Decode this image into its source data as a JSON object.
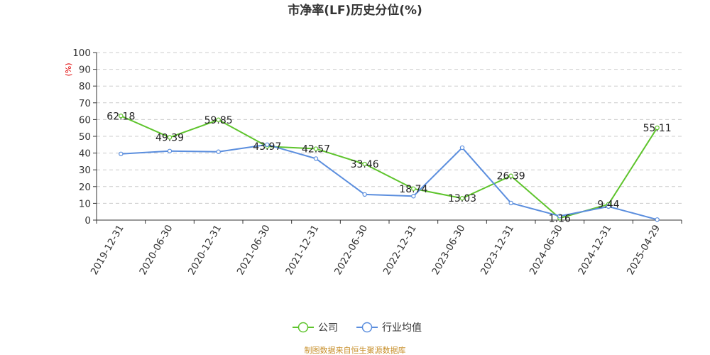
{
  "chart_data": {
    "type": "line",
    "title": "市净率(LF)历史分位(%)",
    "ylabel": "(%)",
    "ylim": [
      0,
      100
    ],
    "yticks": [
      0,
      10,
      20,
      30,
      40,
      50,
      60,
      70,
      80,
      90,
      100
    ],
    "grid": true,
    "legend_position": "bottom-center",
    "categories": [
      "2019-12-31",
      "2020-06-30",
      "2020-12-31",
      "2021-06-30",
      "2021-12-31",
      "2022-06-30",
      "2022-12-31",
      "2023-06-30",
      "2023-12-31",
      "2024-06-30",
      "2024-12-31",
      "2025-04-29"
    ],
    "series": [
      {
        "name": "公司",
        "color": "#5ec42c",
        "values": [
          62.18,
          49.39,
          59.85,
          43.97,
          42.57,
          33.46,
          18.74,
          13.03,
          26.39,
          1.16,
          9.44,
          55.11
        ],
        "labels": [
          "62.18",
          "49.39",
          "59.85",
          "43.97",
          "42.57",
          "33.46",
          "18.74",
          "13.03",
          "26.39",
          "1.16",
          "9.44",
          "55.11"
        ]
      },
      {
        "name": "行业均值",
        "color": "#5b8ede",
        "values": [
          39.5,
          41.2,
          40.8,
          45.0,
          36.7,
          15.3,
          14.3,
          43.2,
          10.2,
          2.4,
          8.1,
          0.3
        ]
      }
    ]
  },
  "source": "制图数据来自恒生聚源数据库"
}
